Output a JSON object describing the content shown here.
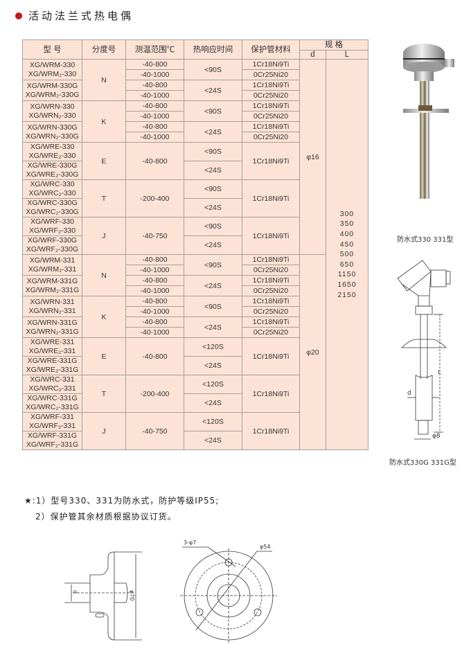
{
  "title": "活动法兰式热电偶",
  "table": {
    "headers": {
      "model": "型  号",
      "grade": "分度号",
      "range": "测温范围℃",
      "time": "热响应时间",
      "material": "保护管材料",
      "spec": "规 格",
      "d": "d",
      "L": "L"
    },
    "series": [
      {
        "d": "φ16",
        "families": [
          {
            "grade": "N",
            "split": true,
            "variants": [
              {
                "models": [
                  "XG/WRM-330",
                  "XG/WRM₂-330"
                ],
                "time": "<90S",
                "ranges": [
                  "-40-800",
                  "-40-1000"
                ],
                "materials": [
                  "1Cr18Ni9Ti",
                  "0Cr25Ni20"
                ]
              },
              {
                "models": [
                  "XG/WRM-330G",
                  "XG/WRM₂-330G"
                ],
                "time": "<24S",
                "ranges": [
                  "-40-800",
                  "-40-1000"
                ],
                "materials": [
                  "1Cr18Ni9Ti",
                  "0Cr25Ni20"
                ]
              }
            ]
          },
          {
            "grade": "K",
            "split": true,
            "variants": [
              {
                "models": [
                  "XG/WRN-330",
                  "XG/WRN₂-330"
                ],
                "time": "<90S",
                "ranges": [
                  "-40-800",
                  "-40-1000"
                ],
                "materials": [
                  "1Cr18Ni9Ti",
                  "0Cr25Ni20"
                ]
              },
              {
                "models": [
                  "XG/WRN-330G",
                  "XG/WRN₂-330G"
                ],
                "time": "<24S",
                "ranges": [
                  "-40-800",
                  "-40-1000"
                ],
                "materials": [
                  "1Cr18Ni9Ti",
                  "0Cr25Ni20"
                ]
              }
            ]
          },
          {
            "grade": "E",
            "split": false,
            "range": "-40-800",
            "material": "1Cr18Ni9Ti",
            "variants": [
              {
                "models": [
                  "XG/WRE-330",
                  "XG/WRE₂-330"
                ],
                "time": "<90S"
              },
              {
                "models": [
                  "XG/WRE-330G",
                  "XG/WRE₂-330G"
                ],
                "time": "<24S"
              }
            ]
          },
          {
            "grade": "T",
            "split": false,
            "range": "-200-400",
            "material": "1Cr18Ni9Ti",
            "variants": [
              {
                "models": [
                  "XG/WRC-330",
                  "XG/WRC₂-330"
                ],
                "time": "<90S"
              },
              {
                "models": [
                  "XG/WRC-330G",
                  "XG/WRC₂-330G"
                ],
                "time": "<24S"
              }
            ]
          },
          {
            "grade": "J",
            "split": false,
            "range": "-40-750",
            "material": "1Cr18Ni9Ti",
            "variants": [
              {
                "models": [
                  "XG/WRF-330",
                  "XG/WRF₂-330"
                ],
                "time": "<90S"
              },
              {
                "models": [
                  "XG/WRF-330G",
                  "XG/WRF₂-330G"
                ],
                "time": "<24S"
              }
            ]
          }
        ]
      },
      {
        "d": "φ20",
        "families": [
          {
            "grade": "N",
            "split": true,
            "variants": [
              {
                "models": [
                  "XG/WRM-331",
                  "XG/WRM₂-331"
                ],
                "time": "<90S",
                "ranges": [
                  "-40-800",
                  "-40-1000"
                ],
                "materials": [
                  "1Cr18Ni9Ti",
                  "0Cr25Ni20"
                ]
              },
              {
                "models": [
                  "XG/WRM-331G",
                  "XG/WRM₂-331G"
                ],
                "time": "<24S",
                "ranges": [
                  "-40-800",
                  "-40-1000"
                ],
                "materials": [
                  "1Cr18Ni9Ti",
                  "0Cr25Ni20"
                ]
              }
            ]
          },
          {
            "grade": "K",
            "split": true,
            "variants": [
              {
                "models": [
                  "XG/WRN-331",
                  "XG/WRN₂-331"
                ],
                "time": "<90S",
                "ranges": [
                  "-40-800",
                  "-40-1000"
                ],
                "materials": [
                  "1Cr18Ni9Ti",
                  "0Cr25Ni20"
                ]
              },
              {
                "models": [
                  "XG/WRN-331G",
                  "XG/WRN₂-331G"
                ],
                "time": "<24S",
                "ranges": [
                  "-40-800",
                  "-40-1000"
                ],
                "materials": [
                  "1Cr18Ni9Ti",
                  "0Cr25Ni20"
                ]
              }
            ]
          },
          {
            "grade": "E",
            "split": false,
            "range": "-40-800",
            "material": "1Cr18Ni9Ti",
            "variants": [
              {
                "models": [
                  "XG/WRE-331",
                  "XG/WRE₂-331"
                ],
                "time": "<120S"
              },
              {
                "models": [
                  "XG/WRE-331G",
                  "XG/WRE₂-331G"
                ],
                "time": "<24S"
              }
            ]
          },
          {
            "grade": "T",
            "split": false,
            "range": "-200-400",
            "material": "1Cr18Ni9Ti",
            "variants": [
              {
                "models": [
                  "XG/WRC-331",
                  "XG/WRC₂-331"
                ],
                "time": "<120S"
              },
              {
                "models": [
                  "XG/WRC-331G",
                  "XG/WRC₂-331G"
                ],
                "time": "<24S"
              }
            ]
          },
          {
            "grade": "J",
            "split": false,
            "range": "-40-750",
            "material": "1Cr18Ni9Ti",
            "variants": [
              {
                "models": [
                  "XG/WRF-331",
                  "XG/WRF₂-331"
                ],
                "time": "<120S"
              },
              {
                "models": [
                  "XG/WRF-331G",
                  "XG/WRF₂-331G"
                ],
                "time": "<24S"
              }
            ]
          }
        ]
      }
    ],
    "L_values": [
      "300",
      "350",
      "400",
      "450",
      "500",
      "650",
      "1150",
      "1650",
      "2150"
    ]
  },
  "images": {
    "photo_caption": "防水式330 331型",
    "drawing_caption": "防水式330G 331G型",
    "drawing_labels": {
      "L": "L",
      "d": "d",
      "tip": "φ8"
    }
  },
  "notes": [
    "★:1）型号330、331为防水式，防护等级IP55;",
    "2）保护管其余材质根据协议订货。"
  ],
  "flange_drawing": {
    "side_dim": "φ70",
    "holes": "3-φ7",
    "pcd": "φ54",
    "d_label": "d"
  },
  "colors": {
    "table_bg": "#fce3d5",
    "title_dot": "#c8141a"
  }
}
